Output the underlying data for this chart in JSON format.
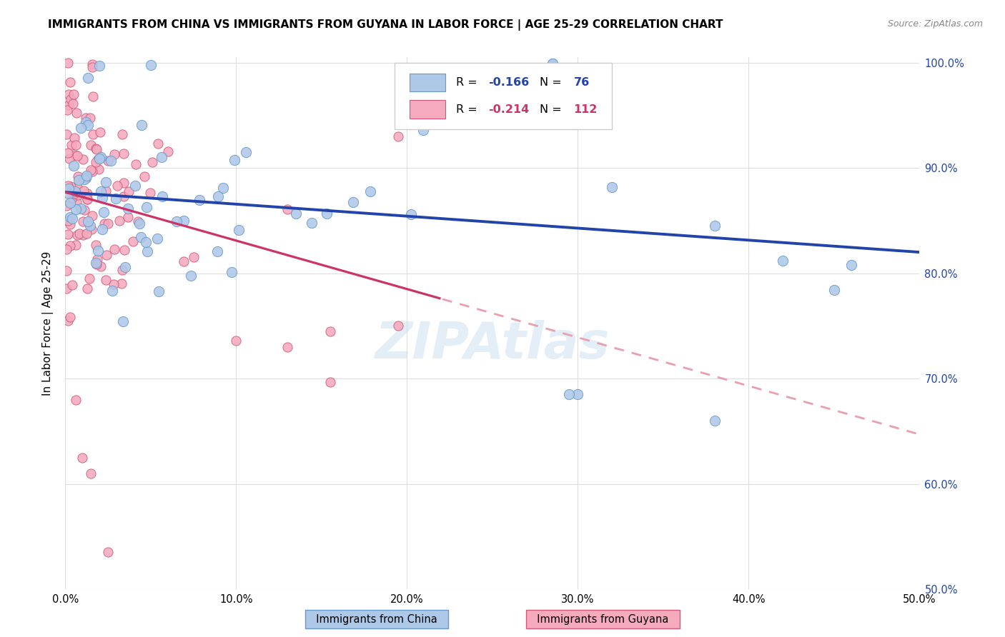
{
  "title": "IMMIGRANTS FROM CHINA VS IMMIGRANTS FROM GUYANA IN LABOR FORCE | AGE 25-29 CORRELATION CHART",
  "source": "Source: ZipAtlas.com",
  "ylabel": "In Labor Force | Age 25-29",
  "xlim": [
    0.0,
    0.5
  ],
  "ylim": [
    0.5,
    1.005
  ],
  "xtick_values": [
    0.0,
    0.1,
    0.2,
    0.3,
    0.4,
    0.5
  ],
  "xtick_labels": [
    "0.0%",
    "10.0%",
    "20.0%",
    "30.0%",
    "40.0%",
    "50.0%"
  ],
  "ytick_values": [
    0.5,
    0.6,
    0.7,
    0.8,
    0.9,
    1.0
  ],
  "ytick_labels": [
    "50.0%",
    "60.0%",
    "70.0%",
    "80.0%",
    "90.0%",
    "100.0%"
  ],
  "china_face_color": "#aec8e8",
  "china_edge_color": "#6699cc",
  "guyana_face_color": "#f5aabe",
  "guyana_edge_color": "#d05878",
  "china_line_color": "#2244aa",
  "guyana_solid_color": "#cc3366",
  "guyana_dash_color": "#e8a0b0",
  "legend_R_color_china": "#2244aa",
  "legend_R_color_guyana": "#cc3366",
  "china_R": "-0.166",
  "china_N": "76",
  "guyana_R": "-0.214",
  "guyana_N": "112",
  "watermark": "ZIPAtlas",
  "watermark_color": "#cce0f0",
  "bg_color": "#ffffff",
  "grid_color": "#dddddd",
  "title_fontsize": 11,
  "axis_label_fontsize": 10.5,
  "tick_fontsize": 10.5
}
